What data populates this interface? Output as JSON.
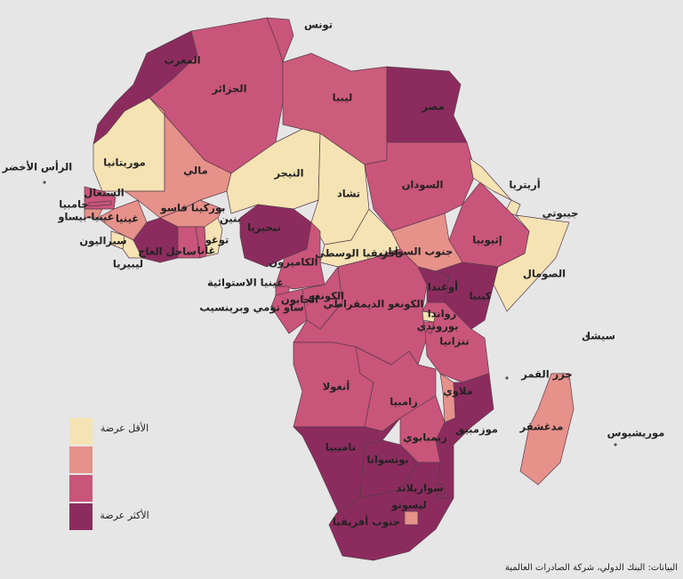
{
  "map": {
    "countries": [
      {
        "label": "تونس",
        "color": "#c9557a"
      },
      {
        "label": "المغرب",
        "color": "#8c2c5e"
      },
      {
        "label": "الجزائر",
        "color": "#c9557a"
      },
      {
        "label": "ليبيا",
        "color": "#cc5c7c"
      },
      {
        "label": "مصر",
        "color": "#8c2c5e"
      },
      {
        "label": "موريتانيا",
        "color": "#f5e3b3"
      },
      {
        "label": "مالي",
        "color": "#e6918a"
      },
      {
        "label": "النيجر",
        "color": "#f5e3b3"
      },
      {
        "label": "تشاد",
        "color": "#f5e3b3"
      },
      {
        "label": "السودان",
        "color": "#c9557a"
      },
      {
        "label": "أريتريا",
        "color": "#f5e3b3"
      },
      {
        "label": "جيبوتي",
        "color": "#f5e3b3"
      },
      {
        "label": "إثيوبيا",
        "color": "#c9557a"
      },
      {
        "label": "الصومال",
        "color": "#f5e3b3"
      },
      {
        "label": "جنوب السودان",
        "color": "#e6918a"
      },
      {
        "label": "أفريقيا الوسطى",
        "color": "#f5e3b3"
      },
      {
        "label": "نيجيريا",
        "color": "#8c2c5e"
      },
      {
        "label": "الكاميرون",
        "color": "#c9557a"
      },
      {
        "label": "السنغال",
        "color": "#c9557a"
      },
      {
        "label": "غينيا-بيساو",
        "color": "#e6918a"
      },
      {
        "label": "غينيا",
        "color": "#e6918a"
      },
      {
        "label": "سيراليون",
        "color": "#f5e3b3"
      },
      {
        "label": "ليبيريا",
        "color": "#f5e3b3"
      },
      {
        "label": "ساحل العاج",
        "color": "#8c2c5e"
      },
      {
        "label": "بوركينا فاسو",
        "color": "#e6918a"
      },
      {
        "label": "غانا",
        "color": "#c9557a"
      },
      {
        "label": "توغو",
        "color": "#c9557a"
      },
      {
        "label": "بنين",
        "color": "#f5e3b3"
      },
      {
        "label": "غينيا الاستوائية",
        "color": "#c9557a"
      },
      {
        "label": "الجابون",
        "color": "#c9557a"
      },
      {
        "label": "الكونغو",
        "color": "#c9557a"
      },
      {
        "label": "الكونغو الديمقراطي",
        "color": "#c9557a"
      },
      {
        "label": "أوغندا",
        "color": "#8c2c5e"
      },
      {
        "label": "كينيا",
        "color": "#8c2c5e"
      },
      {
        "label": "رواندا",
        "color": "#f5e3b3"
      },
      {
        "label": "بوروندي",
        "color": "#c9557a"
      },
      {
        "label": "تنزانيا",
        "color": "#c9557a"
      },
      {
        "label": "أنغولا",
        "color": "#c9557a"
      },
      {
        "label": "زامبيا",
        "color": "#c9557a"
      },
      {
        "label": "ملاوي",
        "color": "#e6918a"
      },
      {
        "label": "موزمبيق",
        "color": "#8c2c5e"
      },
      {
        "label": "زيمبابوي",
        "color": "#c9557a"
      },
      {
        "label": "ناميبيا",
        "color": "#8c2c5e"
      },
      {
        "label": "بوتسوانا",
        "color": "#8c2c5e"
      },
      {
        "label": "جنوب أفريقيا",
        "color": "#8c2c5e"
      },
      {
        "label": "ليسوتو",
        "color": "#e6918a"
      },
      {
        "label": "سوازيلاند",
        "color": "#8c2c5e"
      },
      {
        "label": "مدغشقر",
        "color": "#e6918a"
      },
      {
        "label": "جامبيا",
        "color": "#c9557a"
      }
    ],
    "islands": [
      "الرأس الأخضر",
      "ساو تومي وبرينسيب",
      "سيشل",
      "جزر القمر",
      "موريشيوس"
    ],
    "legend": {
      "colors": [
        "#f5e3b3",
        "#e6918a",
        "#c9557a",
        "#8c2c5e"
      ],
      "low_label": "الأقل عرضة",
      "high_label": "الأكثر عرضة"
    },
    "source": "البيانات: البنك الدولي، شركة الصادرات العالمية"
  }
}
